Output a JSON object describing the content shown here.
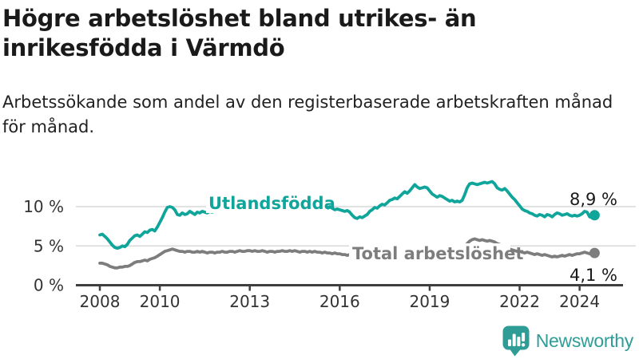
{
  "header": {
    "title_line1": "Högre arbetslöshet bland utrikes- än",
    "title_line2": "inrikesfödda i Värmdö",
    "subtitle": "Arbetssökande som andel av den registerbaserade arbetskraften månad för månad."
  },
  "colors": {
    "utlandsfodda": "#10a59a",
    "total": "#7d7d7d",
    "axis": "#3f3f3f",
    "gridline": "#d9d9d9",
    "tick_label": "#333333",
    "value_label": "#1a1a1a",
    "logo_teal": "#2f9d96"
  },
  "chart_data": {
    "type": "line",
    "title": "Högre arbetslöshet bland utrikes- än inrikesfödda i Värmdö",
    "subtitle": "Arbetssökande som andel av den registerbaserade arbetskraften månad för månad.",
    "xlabel": "",
    "ylabel": "",
    "x_unit": "year",
    "frequency": "monthly",
    "x_start": 2008.0,
    "x_end": 2024.5,
    "xticks": [
      2008,
      2010,
      2013,
      2016,
      2019,
      2022,
      2024
    ],
    "xtick_labels": [
      "2008",
      "2010",
      "2013",
      "2016",
      "2019",
      "2022",
      "2024"
    ],
    "yticks": [
      0,
      5,
      10
    ],
    "ytick_labels": [
      "0 %",
      "5 %",
      "10 %"
    ],
    "ylim": [
      0,
      14.5
    ],
    "grid": "horizontal",
    "legend_position": "inline-labels",
    "series": [
      {
        "name": "Utlandsfödda",
        "color": "#10a59a",
        "end_label": "8,9 %",
        "end_value": 8.9,
        "values": [
          6.4,
          6.5,
          6.2,
          5.9,
          5.5,
          5.1,
          4.8,
          4.7,
          4.8,
          5.0,
          4.9,
          5.2,
          5.7,
          6.0,
          6.3,
          6.4,
          6.2,
          6.5,
          6.8,
          6.7,
          7.0,
          7.1,
          6.9,
          7.4,
          8.0,
          8.6,
          9.3,
          9.9,
          10.0,
          9.9,
          9.6,
          9.0,
          8.9,
          9.2,
          9.0,
          9.1,
          9.4,
          9.2,
          9.0,
          9.3,
          9.2,
          9.4,
          9.3,
          9.2,
          9.4,
          9.3,
          9.5,
          9.4,
          9.5,
          9.6,
          9.8,
          9.9,
          9.7,
          9.9,
          10.0,
          9.8,
          9.9,
          10.1,
          10.0,
          10.2,
          10.3,
          10.4,
          10.3,
          10.1,
          10.0,
          9.9,
          10.0,
          9.8,
          9.9,
          9.8,
          9.7,
          9.8,
          9.9,
          9.8,
          9.7,
          9.8,
          9.6,
          9.7,
          9.8,
          9.6,
          9.5,
          9.6,
          9.7,
          9.6,
          9.7,
          9.8,
          9.9,
          9.8,
          9.9,
          9.7,
          9.6,
          9.8,
          10.0,
          9.8,
          9.6,
          9.7,
          9.6,
          9.5,
          9.4,
          9.5,
          9.3,
          8.9,
          8.6,
          8.5,
          8.7,
          8.6,
          8.8,
          9.0,
          9.4,
          9.6,
          9.9,
          9.8,
          10.1,
          10.3,
          10.2,
          10.5,
          10.8,
          10.9,
          11.1,
          11.0,
          11.3,
          11.6,
          11.9,
          11.7,
          12.0,
          12.4,
          12.8,
          12.5,
          12.3,
          12.4,
          12.5,
          12.4,
          12.0,
          11.6,
          11.4,
          11.2,
          11.4,
          11.3,
          11.1,
          10.9,
          10.7,
          10.8,
          10.6,
          10.7,
          10.6,
          10.8,
          11.5,
          12.4,
          12.9,
          13.0,
          12.9,
          12.8,
          12.9,
          13.0,
          13.1,
          13.0,
          13.1,
          13.2,
          12.9,
          12.4,
          12.2,
          12.1,
          12.3,
          12.0,
          11.6,
          11.2,
          10.9,
          10.5,
          10.1,
          9.7,
          9.5,
          9.4,
          9.2,
          9.1,
          8.9,
          8.8,
          9.0,
          8.9,
          8.7,
          9.0,
          8.9,
          8.7,
          9.0,
          9.2,
          9.1,
          8.9,
          9.0,
          9.1,
          8.9,
          8.8,
          8.9,
          8.8,
          8.9,
          9.1,
          9.4,
          9.3,
          8.7,
          8.6,
          8.9
        ]
      },
      {
        "name": "Total arbetslöshet",
        "color": "#7d7d7d",
        "end_label": "4,1 %",
        "end_value": 4.1,
        "values": [
          2.8,
          2.8,
          2.7,
          2.6,
          2.4,
          2.3,
          2.2,
          2.2,
          2.3,
          2.3,
          2.4,
          2.4,
          2.5,
          2.7,
          2.9,
          3.0,
          3.0,
          3.1,
          3.2,
          3.1,
          3.3,
          3.4,
          3.5,
          3.7,
          3.9,
          4.1,
          4.3,
          4.4,
          4.5,
          4.6,
          4.5,
          4.4,
          4.3,
          4.3,
          4.2,
          4.3,
          4.3,
          4.2,
          4.2,
          4.3,
          4.2,
          4.3,
          4.2,
          4.1,
          4.2,
          4.2,
          4.1,
          4.2,
          4.2,
          4.3,
          4.2,
          4.2,
          4.3,
          4.3,
          4.2,
          4.3,
          4.4,
          4.3,
          4.3,
          4.4,
          4.4,
          4.3,
          4.4,
          4.3,
          4.3,
          4.4,
          4.3,
          4.2,
          4.3,
          4.3,
          4.2,
          4.3,
          4.3,
          4.4,
          4.3,
          4.3,
          4.4,
          4.3,
          4.4,
          4.3,
          4.2,
          4.3,
          4.3,
          4.2,
          4.3,
          4.2,
          4.3,
          4.2,
          4.2,
          4.1,
          4.2,
          4.1,
          4.1,
          4.0,
          4.1,
          4.0,
          4.0,
          3.9,
          3.9,
          3.8,
          3.9,
          3.8,
          3.9,
          3.9,
          4.0,
          3.9,
          4.0,
          4.0,
          4.0,
          4.1,
          4.0,
          4.0,
          4.1,
          4.0,
          4.1,
          4.0,
          4.0,
          4.1,
          4.1,
          4.0,
          4.0,
          4.0,
          3.9,
          4.0,
          3.9,
          3.9,
          4.0,
          3.9,
          3.8,
          3.9,
          3.9,
          3.8,
          3.9,
          3.8,
          3.8,
          3.9,
          3.8,
          3.9,
          3.9,
          4.0,
          3.9,
          4.0,
          4.0,
          4.1,
          4.2,
          4.3,
          4.8,
          5.3,
          5.6,
          5.8,
          5.9,
          5.8,
          5.7,
          5.8,
          5.7,
          5.6,
          5.7,
          5.6,
          5.5,
          5.3,
          5.2,
          5.0,
          4.9,
          4.8,
          4.6,
          4.5,
          4.4,
          4.3,
          4.3,
          4.2,
          4.1,
          4.2,
          4.1,
          4.0,
          3.9,
          4.0,
          3.9,
          3.8,
          3.9,
          3.8,
          3.7,
          3.6,
          3.7,
          3.6,
          3.7,
          3.8,
          3.7,
          3.8,
          3.9,
          3.8,
          3.9,
          4.0,
          4.0,
          4.1,
          4.2,
          4.1,
          4.0,
          4.1,
          4.1
        ]
      }
    ]
  },
  "footer": {
    "brand": "Newsworthy"
  }
}
